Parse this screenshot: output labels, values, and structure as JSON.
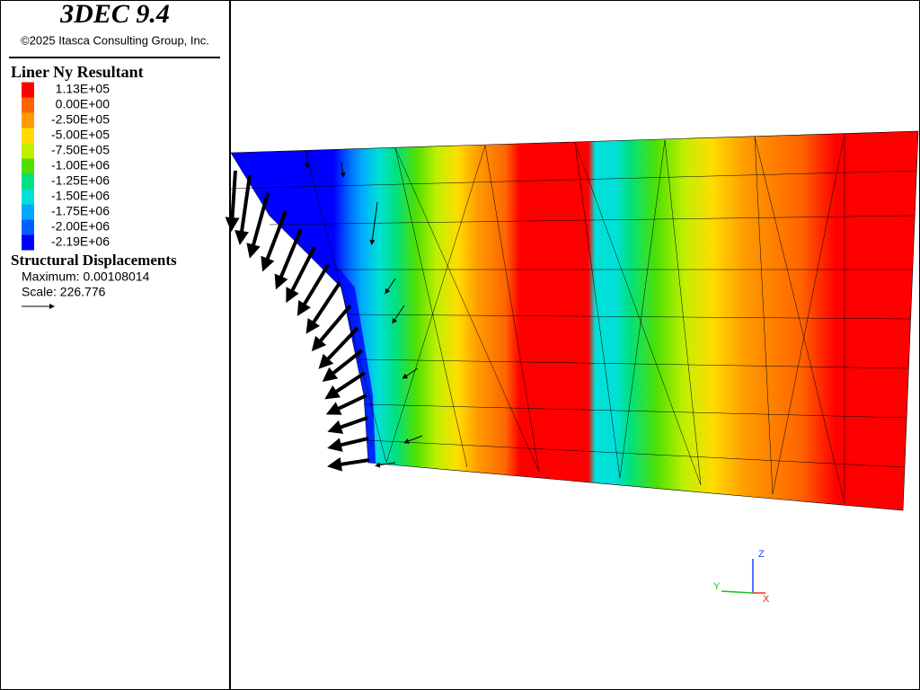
{
  "header": {
    "title": "3DEC 9.4",
    "copyright": "©2025 Itasca Consulting Group, Inc."
  },
  "legend": {
    "title": "Liner Ny Resultant",
    "entries": [
      {
        "label": "1.13E+05",
        "color": "#ff0000"
      },
      {
        "label": "0.00E+00",
        "color": "#ff6400"
      },
      {
        "label": "-2.50E+05",
        "color": "#ff9a00"
      },
      {
        "label": "-5.00E+05",
        "color": "#ffdc00"
      },
      {
        "label": "-7.50E+05",
        "color": "#c0f000"
      },
      {
        "label": "-1.00E+06",
        "color": "#50e000"
      },
      {
        "label": "-1.25E+06",
        "color": "#00e080"
      },
      {
        "label": "-1.50E+06",
        "color": "#00e0d8"
      },
      {
        "label": "-1.75E+06",
        "color": "#00a8ff"
      },
      {
        "label": "-2.00E+06",
        "color": "#0060ff"
      },
      {
        "label": "-2.19E+06",
        "color": "#0000ff"
      }
    ]
  },
  "displacements": {
    "title": "Structural Displacements",
    "maximum": "Maximum: 0.00108014",
    "scale": "Scale: 226.776"
  },
  "axes": {
    "z": "Z",
    "y": "Y",
    "x": "X"
  }
}
